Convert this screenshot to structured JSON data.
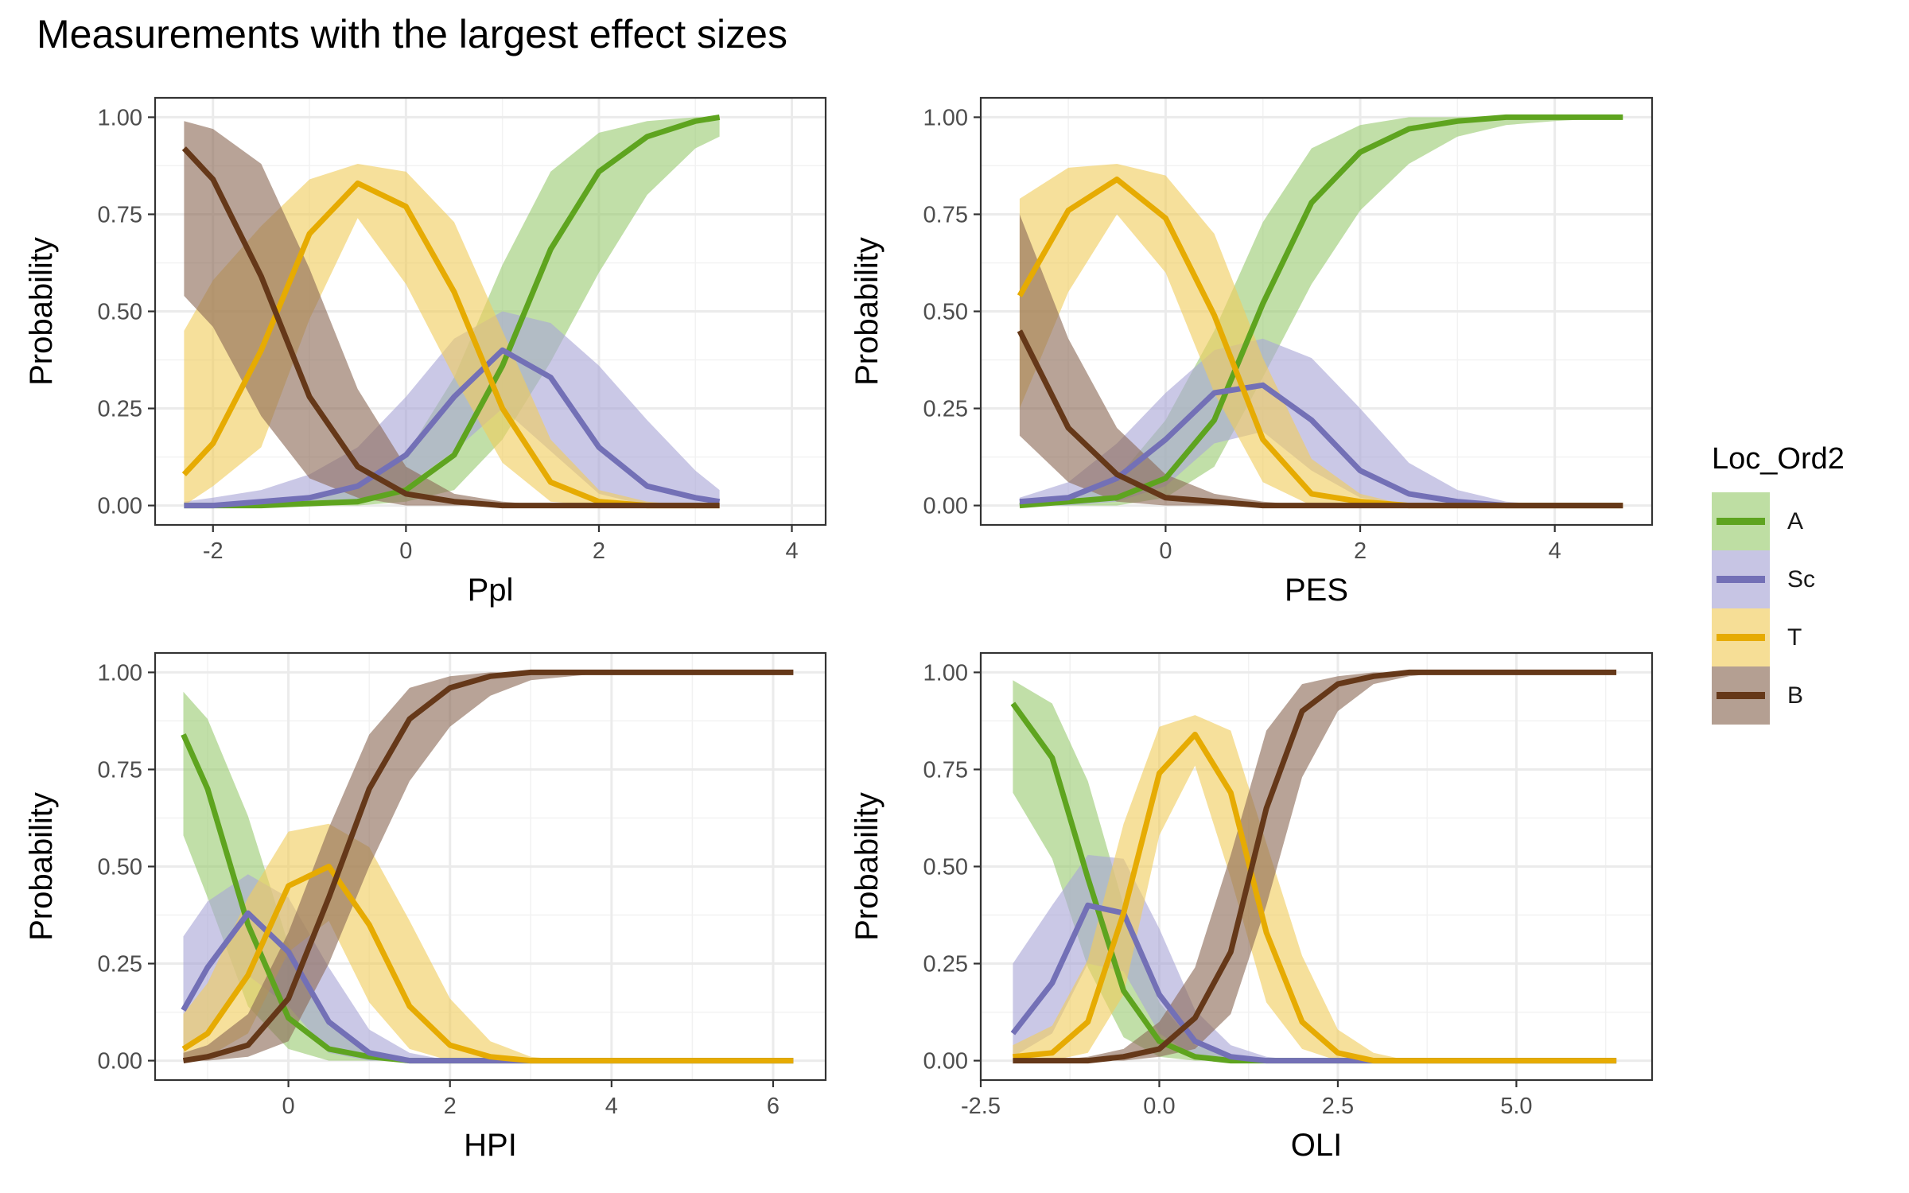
{
  "title": "Measurements with the largest effect sizes",
  "colors": {
    "A": "#5ea41f",
    "Sc": "#7370b6",
    "T": "#e6ab02",
    "B": "#653819",
    "A_band": "#9bcc72",
    "Sc_band": "#a9a6d6",
    "T_band": "#f1cd5e",
    "B_band": "#8c6b57"
  },
  "legend": {
    "title": "Loc_Ord2",
    "items": [
      {
        "key": "A",
        "label": "A"
      },
      {
        "key": "Sc",
        "label": "Sc"
      },
      {
        "key": "T",
        "label": "T"
      },
      {
        "key": "B",
        "label": "B"
      }
    ]
  },
  "chart_data": [
    {
      "type": "line",
      "xlabel": "Ppl",
      "ylabel": "Probability",
      "xlim": [
        -2.6,
        4.35
      ],
      "ylim": [
        -0.05,
        1.05
      ],
      "xticks": [
        -2,
        0,
        2,
        4
      ],
      "xtick_labels": [
        "-2",
        "0",
        "2",
        "4"
      ],
      "yticks": [
        0,
        0.25,
        0.5,
        0.75,
        1
      ],
      "ytick_labels": [
        "0.00",
        "0.25",
        "0.50",
        "0.75",
        "1.00"
      ],
      "x": [
        -2.3,
        -2.0,
        -1.5,
        -1.0,
        -0.5,
        0.0,
        0.5,
        1.0,
        1.5,
        2.0,
        2.5,
        3.0,
        3.25
      ],
      "series": [
        {
          "name": "A",
          "values": [
            0.0,
            0.0,
            0.0,
            0.005,
            0.01,
            0.04,
            0.13,
            0.36,
            0.66,
            0.86,
            0.95,
            0.99,
            1.0
          ],
          "lower": [
            0.0,
            0.0,
            0.0,
            0.0,
            0.0,
            0.01,
            0.04,
            0.17,
            0.37,
            0.6,
            0.8,
            0.92,
            0.95
          ],
          "upper": [
            0.0,
            0.0,
            0.01,
            0.02,
            0.05,
            0.13,
            0.33,
            0.62,
            0.86,
            0.96,
            0.99,
            1.0,
            1.0
          ]
        },
        {
          "name": "Sc",
          "values": [
            0.0,
            0.0,
            0.01,
            0.02,
            0.05,
            0.13,
            0.28,
            0.4,
            0.33,
            0.15,
            0.05,
            0.02,
            0.01
          ],
          "lower": [
            0.0,
            0.0,
            0.0,
            0.0,
            0.01,
            0.05,
            0.14,
            0.25,
            0.14,
            0.03,
            0.0,
            0.0,
            0.0
          ],
          "upper": [
            0.01,
            0.02,
            0.04,
            0.08,
            0.15,
            0.28,
            0.43,
            0.5,
            0.47,
            0.36,
            0.22,
            0.09,
            0.04
          ]
        },
        {
          "name": "T",
          "values": [
            0.08,
            0.16,
            0.4,
            0.7,
            0.83,
            0.77,
            0.55,
            0.25,
            0.06,
            0.01,
            0.0,
            0.0,
            0.0
          ],
          "lower": [
            0.0,
            0.05,
            0.15,
            0.48,
            0.74,
            0.57,
            0.33,
            0.11,
            0.01,
            0.0,
            0.0,
            0.0,
            0.0
          ],
          "upper": [
            0.45,
            0.58,
            0.72,
            0.84,
            0.88,
            0.86,
            0.73,
            0.45,
            0.17,
            0.04,
            0.01,
            0.0,
            0.0
          ]
        },
        {
          "name": "B",
          "values": [
            0.92,
            0.84,
            0.59,
            0.28,
            0.1,
            0.03,
            0.01,
            0.0,
            0.0,
            0.0,
            0.0,
            0.0,
            0.0
          ],
          "lower": [
            0.54,
            0.46,
            0.23,
            0.07,
            0.02,
            0.0,
            0.0,
            0.0,
            0.0,
            0.0,
            0.0,
            0.0,
            0.0
          ],
          "upper": [
            0.99,
            0.97,
            0.88,
            0.61,
            0.3,
            0.1,
            0.03,
            0.01,
            0.0,
            0.0,
            0.0,
            0.0,
            0.0
          ]
        }
      ]
    },
    {
      "type": "line",
      "xlabel": "PES",
      "ylabel": "Probability",
      "xlim": [
        -1.9,
        5.0
      ],
      "ylim": [
        -0.05,
        1.05
      ],
      "xticks": [
        0,
        2,
        4
      ],
      "xtick_labels": [
        "0",
        "2",
        "4"
      ],
      "yticks": [
        0,
        0.25,
        0.5,
        0.75,
        1
      ],
      "ytick_labels": [
        "0.00",
        "0.25",
        "0.50",
        "0.75",
        "1.00"
      ],
      "x": [
        -1.5,
        -1.0,
        -0.5,
        0.0,
        0.5,
        1.0,
        1.5,
        2.0,
        2.5,
        3.0,
        3.5,
        4.0,
        4.7
      ],
      "series": [
        {
          "name": "A",
          "values": [
            0.0,
            0.01,
            0.02,
            0.07,
            0.22,
            0.52,
            0.78,
            0.91,
            0.97,
            0.99,
            1.0,
            1.0,
            1.0
          ],
          "lower": [
            0.0,
            0.0,
            0.0,
            0.02,
            0.1,
            0.33,
            0.57,
            0.76,
            0.88,
            0.95,
            0.98,
            0.99,
            1.0
          ],
          "upper": [
            0.0,
            0.02,
            0.07,
            0.22,
            0.45,
            0.73,
            0.92,
            0.98,
            1.0,
            1.0,
            1.0,
            1.0,
            1.0
          ]
        },
        {
          "name": "Sc",
          "values": [
            0.01,
            0.02,
            0.07,
            0.17,
            0.29,
            0.31,
            0.22,
            0.09,
            0.03,
            0.01,
            0.0,
            0.0,
            0.0
          ],
          "lower": [
            0.0,
            0.0,
            0.01,
            0.05,
            0.16,
            0.19,
            0.09,
            0.02,
            0.0,
            0.0,
            0.0,
            0.0,
            0.0
          ],
          "upper": [
            0.02,
            0.06,
            0.16,
            0.29,
            0.4,
            0.43,
            0.38,
            0.25,
            0.11,
            0.04,
            0.01,
            0.0,
            0.0
          ]
        },
        {
          "name": "T",
          "values": [
            0.54,
            0.76,
            0.84,
            0.74,
            0.49,
            0.17,
            0.03,
            0.01,
            0.0,
            0.0,
            0.0,
            0.0,
            0.0
          ],
          "lower": [
            0.25,
            0.55,
            0.75,
            0.6,
            0.29,
            0.06,
            0.0,
            0.0,
            0.0,
            0.0,
            0.0,
            0.0,
            0.0
          ],
          "upper": [
            0.79,
            0.87,
            0.88,
            0.85,
            0.7,
            0.38,
            0.12,
            0.03,
            0.0,
            0.0,
            0.0,
            0.0,
            0.0
          ]
        },
        {
          "name": "B",
          "values": [
            0.45,
            0.2,
            0.08,
            0.02,
            0.01,
            0.0,
            0.0,
            0.0,
            0.0,
            0.0,
            0.0,
            0.0,
            0.0
          ],
          "lower": [
            0.18,
            0.06,
            0.01,
            0.0,
            0.0,
            0.0,
            0.0,
            0.0,
            0.0,
            0.0,
            0.0,
            0.0,
            0.0
          ],
          "upper": [
            0.75,
            0.43,
            0.2,
            0.08,
            0.03,
            0.01,
            0.0,
            0.0,
            0.0,
            0.0,
            0.0,
            0.0,
            0.0
          ]
        }
      ]
    },
    {
      "type": "line",
      "xlabel": "HPI",
      "ylabel": "Probability",
      "xlim": [
        -1.65,
        6.65
      ],
      "ylim": [
        -0.05,
        1.05
      ],
      "xticks": [
        0,
        2,
        4,
        6
      ],
      "xtick_labels": [
        "0",
        "2",
        "4",
        "6"
      ],
      "yticks": [
        0,
        0.25,
        0.5,
        0.75,
        1
      ],
      "ytick_labels": [
        "0.00",
        "0.25",
        "0.50",
        "0.75",
        "1.00"
      ],
      "x": [
        -1.3,
        -1.0,
        -0.5,
        0.0,
        0.5,
        1.0,
        1.5,
        2.0,
        2.5,
        3.0,
        3.5,
        4.0,
        5.0,
        6.25
      ],
      "series": [
        {
          "name": "A",
          "values": [
            0.84,
            0.7,
            0.35,
            0.11,
            0.03,
            0.01,
            0.0,
            0.0,
            0.0,
            0.0,
            0.0,
            0.0,
            0.0,
            0.0
          ],
          "lower": [
            0.58,
            0.42,
            0.14,
            0.03,
            0.0,
            0.0,
            0.0,
            0.0,
            0.0,
            0.0,
            0.0,
            0.0,
            0.0,
            0.0
          ],
          "upper": [
            0.95,
            0.88,
            0.63,
            0.3,
            0.09,
            0.02,
            0.0,
            0.0,
            0.0,
            0.0,
            0.0,
            0.0,
            0.0,
            0.0
          ]
        },
        {
          "name": "Sc",
          "values": [
            0.13,
            0.24,
            0.38,
            0.28,
            0.1,
            0.02,
            0.0,
            0.0,
            0.0,
            0.0,
            0.0,
            0.0,
            0.0,
            0.0
          ],
          "lower": [
            0.02,
            0.08,
            0.22,
            0.14,
            0.02,
            0.0,
            0.0,
            0.0,
            0.0,
            0.0,
            0.0,
            0.0,
            0.0,
            0.0
          ],
          "upper": [
            0.32,
            0.41,
            0.48,
            0.42,
            0.24,
            0.08,
            0.02,
            0.0,
            0.0,
            0.0,
            0.0,
            0.0,
            0.0,
            0.0
          ]
        },
        {
          "name": "T",
          "values": [
            0.03,
            0.07,
            0.22,
            0.45,
            0.5,
            0.35,
            0.14,
            0.04,
            0.01,
            0.0,
            0.0,
            0.0,
            0.0,
            0.0
          ],
          "lower": [
            0.0,
            0.01,
            0.07,
            0.28,
            0.36,
            0.15,
            0.03,
            0.0,
            0.0,
            0.0,
            0.0,
            0.0,
            0.0,
            0.0
          ],
          "upper": [
            0.12,
            0.2,
            0.42,
            0.59,
            0.61,
            0.55,
            0.36,
            0.16,
            0.05,
            0.01,
            0.0,
            0.0,
            0.0,
            0.0
          ]
        },
        {
          "name": "B",
          "values": [
            0.0,
            0.01,
            0.04,
            0.16,
            0.42,
            0.7,
            0.88,
            0.96,
            0.99,
            1.0,
            1.0,
            1.0,
            1.0,
            1.0
          ],
          "lower": [
            0.0,
            0.0,
            0.01,
            0.05,
            0.25,
            0.5,
            0.72,
            0.86,
            0.94,
            0.98,
            0.99,
            1.0,
            1.0,
            1.0
          ],
          "upper": [
            0.02,
            0.04,
            0.12,
            0.33,
            0.6,
            0.84,
            0.96,
            0.99,
            1.0,
            1.0,
            1.0,
            1.0,
            1.0,
            1.0
          ]
        }
      ]
    },
    {
      "type": "line",
      "xlabel": "OLI",
      "ylabel": "Probability",
      "xlim": [
        -2.5,
        6.9
      ],
      "ylim": [
        -0.05,
        1.05
      ],
      "xticks": [
        -2.5,
        0,
        2.5,
        5
      ],
      "xtick_labels": [
        "-2.5",
        "0.0",
        "2.5",
        "5.0"
      ],
      "yticks": [
        0,
        0.25,
        0.5,
        0.75,
        1
      ],
      "ytick_labels": [
        "0.00",
        "0.25",
        "0.50",
        "0.75",
        "1.00"
      ],
      "x": [
        -2.05,
        -1.5,
        -1.0,
        -0.5,
        0.0,
        0.5,
        1.0,
        1.5,
        2.0,
        2.5,
        3.0,
        3.5,
        4.0,
        5.0,
        6.4
      ],
      "series": [
        {
          "name": "A",
          "values": [
            0.92,
            0.78,
            0.47,
            0.18,
            0.05,
            0.01,
            0.0,
            0.0,
            0.0,
            0.0,
            0.0,
            0.0,
            0.0,
            0.0,
            0.0
          ],
          "lower": [
            0.69,
            0.52,
            0.24,
            0.06,
            0.01,
            0.0,
            0.0,
            0.0,
            0.0,
            0.0,
            0.0,
            0.0,
            0.0,
            0.0,
            0.0
          ],
          "upper": [
            0.98,
            0.92,
            0.72,
            0.4,
            0.15,
            0.04,
            0.01,
            0.0,
            0.0,
            0.0,
            0.0,
            0.0,
            0.0,
            0.0,
            0.0
          ]
        },
        {
          "name": "Sc",
          "values": [
            0.07,
            0.2,
            0.4,
            0.38,
            0.17,
            0.05,
            0.01,
            0.0,
            0.0,
            0.0,
            0.0,
            0.0,
            0.0,
            0.0,
            0.0
          ],
          "lower": [
            0.01,
            0.07,
            0.25,
            0.23,
            0.07,
            0.01,
            0.0,
            0.0,
            0.0,
            0.0,
            0.0,
            0.0,
            0.0,
            0.0,
            0.0
          ],
          "upper": [
            0.25,
            0.4,
            0.53,
            0.52,
            0.34,
            0.13,
            0.04,
            0.01,
            0.0,
            0.0,
            0.0,
            0.0,
            0.0,
            0.0,
            0.0
          ]
        },
        {
          "name": "T",
          "values": [
            0.01,
            0.02,
            0.1,
            0.38,
            0.74,
            0.84,
            0.69,
            0.33,
            0.1,
            0.02,
            0.0,
            0.0,
            0.0,
            0.0,
            0.0
          ],
          "lower": [
            0.0,
            0.0,
            0.02,
            0.17,
            0.58,
            0.76,
            0.47,
            0.15,
            0.03,
            0.0,
            0.0,
            0.0,
            0.0,
            0.0,
            0.0
          ],
          "upper": [
            0.04,
            0.09,
            0.26,
            0.61,
            0.86,
            0.89,
            0.85,
            0.56,
            0.27,
            0.08,
            0.02,
            0.0,
            0.0,
            0.0,
            0.0
          ]
        },
        {
          "name": "B",
          "values": [
            0.0,
            0.0,
            0.0,
            0.01,
            0.03,
            0.11,
            0.28,
            0.65,
            0.9,
            0.97,
            0.99,
            1.0,
            1.0,
            1.0,
            1.0
          ],
          "lower": [
            0.0,
            0.0,
            0.0,
            0.0,
            0.01,
            0.03,
            0.12,
            0.4,
            0.73,
            0.9,
            0.97,
            0.99,
            1.0,
            1.0,
            1.0
          ],
          "upper": [
            0.0,
            0.0,
            0.01,
            0.03,
            0.1,
            0.24,
            0.53,
            0.85,
            0.97,
            0.99,
            1.0,
            1.0,
            1.0,
            1.0,
            1.0
          ]
        }
      ]
    }
  ]
}
